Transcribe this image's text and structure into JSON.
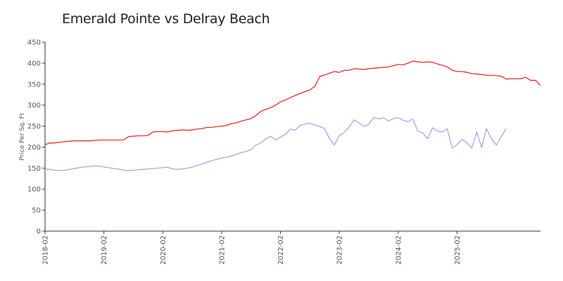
{
  "chart_data": {
    "type": "line",
    "title": "Emerald Pointe vs Delray Beach",
    "xlabel": "",
    "ylabel": "Price Per Sq. Ft",
    "ylim": [
      0,
      450
    ],
    "yticks": [
      0,
      50,
      100,
      150,
      200,
      250,
      300,
      350,
      400,
      450
    ],
    "xticks": [
      "2018-02",
      "2019-02",
      "2020-02",
      "2021-02",
      "2022-02",
      "2023-02",
      "2024-02",
      "2025-02"
    ],
    "grid": false,
    "x_start_month": "2018-02",
    "series": [
      {
        "color": "#ee1c1c",
        "values": [
          206,
          210,
          210,
          212,
          213,
          214,
          215,
          215,
          215,
          215,
          216,
          217,
          217,
          217,
          217,
          217,
          217,
          225,
          226,
          227,
          227,
          228,
          236,
          237,
          237,
          236,
          239,
          240,
          241,
          240,
          241,
          243,
          244,
          247,
          247,
          249,
          250,
          252,
          256,
          258,
          262,
          265,
          268,
          275,
          285,
          290,
          294,
          300,
          308,
          312,
          318,
          323,
          328,
          332,
          336,
          345,
          368,
          372,
          376,
          380,
          378,
          383,
          383,
          387,
          386,
          385,
          387,
          388,
          389,
          390,
          391,
          394,
          397,
          396,
          400,
          405,
          403,
          402,
          403,
          402,
          398,
          395,
          391,
          383,
          380,
          380,
          378,
          375,
          374,
          373,
          371,
          371,
          370,
          369,
          362,
          363,
          363,
          363,
          366,
          359,
          359,
          347
        ]
      },
      {
        "color": "#a0a0ee",
        "values": [
          148,
          147,
          145,
          144,
          145,
          147,
          149,
          151,
          153,
          154,
          155,
          155,
          153,
          151,
          149,
          148,
          145,
          144,
          145,
          146,
          147,
          148,
          149,
          150,
          151,
          152,
          148,
          147,
          148,
          150,
          152,
          156,
          160,
          164,
          168,
          171,
          174,
          176,
          179,
          183,
          187,
          190,
          194,
          205,
          210,
          220,
          226,
          217,
          224,
          230,
          243,
          240,
          252,
          255,
          257,
          253,
          249,
          244,
          220,
          205,
          228,
          235,
          248,
          265,
          258,
          249,
          254,
          271,
          267,
          270,
          262,
          268,
          270,
          264,
          261,
          267,
          238,
          234,
          220,
          246,
          238,
          236,
          244,
          198,
          206,
          219,
          210,
          198,
          236,
          199,
          244,
          220,
          205,
          225,
          244
        ]
      }
    ]
  }
}
